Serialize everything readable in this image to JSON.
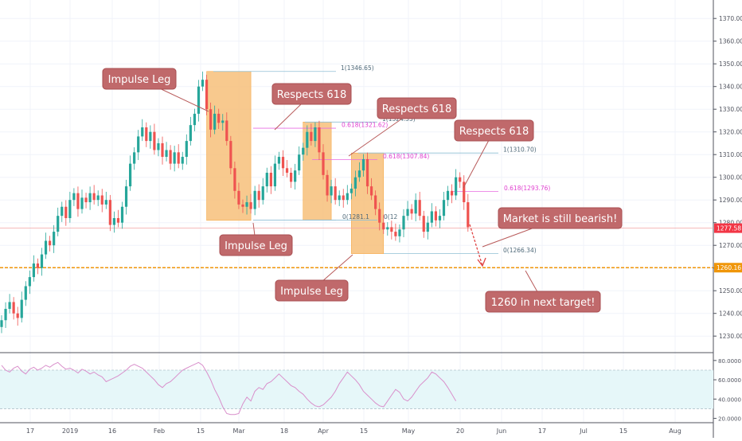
{
  "chart_data": {
    "type": "candlestick",
    "price_axis": {
      "range": [
        1222,
        1376
      ],
      "ticks": [
        1230,
        1240,
        1250,
        1260,
        1270,
        1280,
        1290,
        1300,
        1310,
        1320,
        1330,
        1340,
        1350,
        1360,
        1370
      ]
    },
    "x_axis": {
      "ticks": [
        {
          "label": "17",
          "date": "2018-12-17"
        },
        {
          "label": "2019",
          "date": "2019-01-01"
        },
        {
          "label": "16",
          "date": "2019-01-16"
        },
        {
          "label": "Feb",
          "date": "2019-02-01"
        },
        {
          "label": "15",
          "date": "2019-02-15"
        },
        {
          "label": "Mar",
          "date": "2019-03-01"
        },
        {
          "label": "18",
          "date": "2019-03-18"
        },
        {
          "label": "Apr",
          "date": "2019-04-01"
        },
        {
          "label": "15",
          "date": "2019-04-15"
        },
        {
          "label": "May",
          "date": "2019-05-01"
        },
        {
          "label": "20",
          "date": "2019-05-20"
        },
        {
          "label": "Jun",
          "date": "2019-06-01"
        },
        {
          "label": "17",
          "date": "2019-06-17"
        },
        {
          "label": "Jul",
          "date": "2019-07-01"
        },
        {
          "label": "15",
          "date": "2019-07-15"
        },
        {
          "label": "Aug",
          "date": "2019-08-01"
        }
      ]
    },
    "price_badges": {
      "last_price": "1277.58",
      "target": "1260.16"
    },
    "closes": [
      1237,
      1242,
      1245,
      1240,
      1238,
      1246,
      1252,
      1256,
      1262,
      1260,
      1266,
      1272,
      1270,
      1276,
      1283,
      1287,
      1282,
      1290,
      1293,
      1286,
      1291,
      1289,
      1293,
      1290,
      1292,
      1288,
      1290,
      1279,
      1282,
      1280,
      1287,
      1296,
      1306,
      1311,
      1318,
      1322,
      1316,
      1320,
      1312,
      1315,
      1309,
      1312,
      1306,
      1311,
      1306,
      1309,
      1316,
      1323,
      1328,
      1340,
      1343,
      1330,
      1321,
      1328,
      1324,
      1325,
      1316,
      1304,
      1294,
      1288,
      1287,
      1289,
      1286,
      1294,
      1290,
      1296,
      1302,
      1296,
      1306,
      1309,
      1304,
      1302,
      1298,
      1303,
      1310,
      1313,
      1320,
      1316,
      1322,
      1311,
      1301,
      1292,
      1296,
      1290,
      1292,
      1290,
      1293,
      1295,
      1300,
      1303,
      1308,
      1296,
      1292,
      1286,
      1280,
      1277,
      1278,
      1276,
      1274,
      1277,
      1283,
      1286,
      1284,
      1290,
      1283,
      1276,
      1280,
      1285,
      1281,
      1283,
      1290,
      1294,
      1292,
      1300,
      1298,
      1289,
      1278
    ],
    "annotations": {
      "impulse_1": "Impulse Leg",
      "respects_1": "Respects 618",
      "respects_2": "Respects 618",
      "respects_3": "Respects 618",
      "impulse_2": "Impulse Leg",
      "bearish": "Market is still bearish!",
      "impulse_3": "Impulse Leg",
      "target": "1260 in next target!"
    },
    "fib_labels": [
      {
        "text": "1(1346.65)",
        "value": 1346.65
      },
      {
        "text": "0.618(1321.62)",
        "value": 1321.62
      },
      {
        "text": "1(1324.35)",
        "value": 1324.35
      },
      {
        "text": "0.618(1307.84)",
        "value": 1307.84
      },
      {
        "text": "1(1310.70)",
        "value": 1310.7
      },
      {
        "text": "0.618(1293.76)",
        "value": 1293.76
      },
      {
        "text": "0(1281.1",
        "value": 1281.1
      },
      {
        "text": "0(12",
        "value": 1281.1
      },
      {
        "text": "0(1266.34)",
        "value": 1266.34
      }
    ],
    "rsi": {
      "range": [
        18,
        84
      ],
      "ticks": [
        "80.0000",
        "60.0000",
        "40.0000",
        "20.0000"
      ],
      "levels": [
        70,
        30
      ],
      "values": [
        75,
        70,
        68,
        72,
        74,
        69,
        66,
        71,
        73,
        70,
        72,
        75,
        73,
        76,
        78,
        74,
        71,
        72,
        70,
        67,
        71,
        69,
        66,
        68,
        65,
        63,
        58,
        60,
        62,
        64,
        67,
        70,
        74,
        76,
        74,
        72,
        68,
        64,
        60,
        55,
        52,
        56,
        58,
        62,
        66,
        70,
        72,
        74,
        76,
        78,
        75,
        68,
        60,
        50,
        42,
        32,
        25,
        24,
        24,
        25,
        35,
        42,
        38,
        48,
        52,
        50,
        56,
        58,
        62,
        66,
        62,
        58,
        54,
        52,
        48,
        45,
        40,
        36,
        33,
        32,
        34,
        38,
        42,
        48,
        56,
        62,
        68,
        64,
        60,
        55,
        48,
        44,
        40,
        36,
        33,
        32,
        38,
        44,
        50,
        47,
        40,
        38,
        42,
        48,
        54,
        58,
        62,
        68,
        66,
        62,
        58,
        52,
        45,
        38
      ]
    }
  }
}
